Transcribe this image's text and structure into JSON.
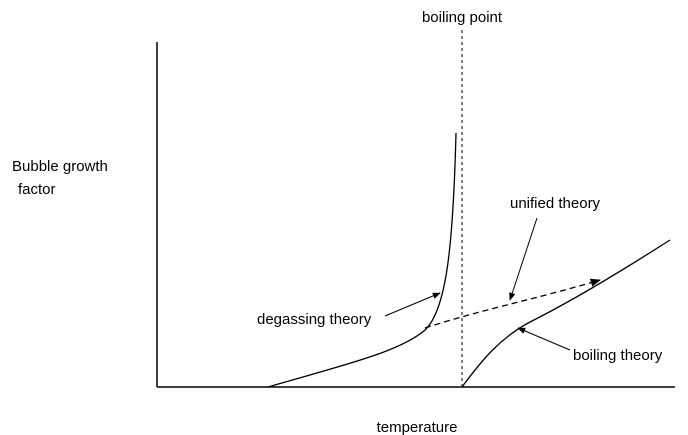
{
  "diagram": {
    "marker_label": "boiling point",
    "y_label": [
      "Bubble growth",
      "factor"
    ],
    "x_label": "temperature",
    "curves": [
      {
        "label": "degassing theory"
      },
      {
        "label": "unified theory"
      },
      {
        "label": "boiling theory"
      }
    ]
  }
}
